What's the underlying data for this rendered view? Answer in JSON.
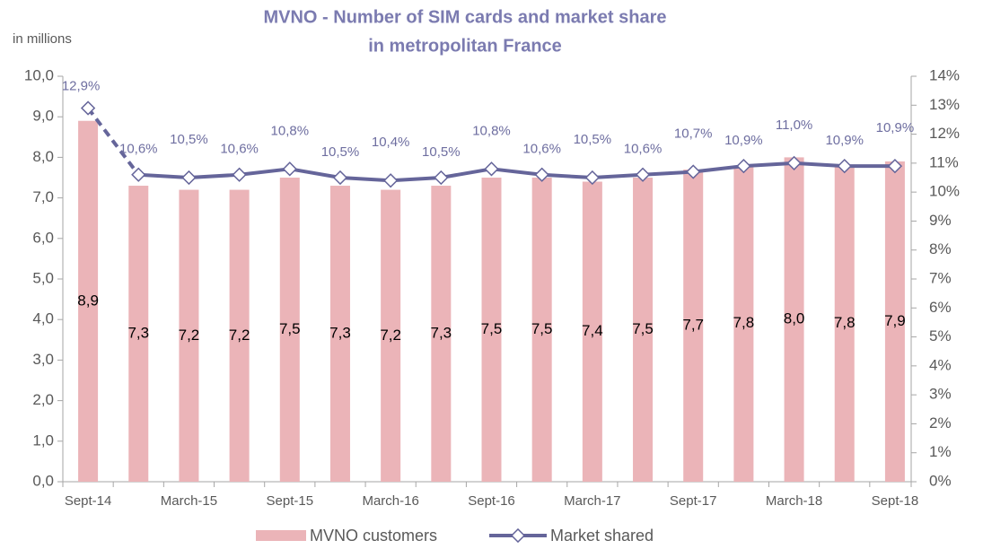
{
  "chart_data": {
    "type": "bar_line",
    "title": [
      "MVNO - Number of SIM cards and market share",
      "in metropolitan France"
    ],
    "ylabel": "in millions",
    "categories": [
      "Sept-14",
      null,
      "March-15",
      null,
      "Sept-15",
      null,
      "March-16",
      null,
      "Sept-16",
      null,
      "March-17",
      null,
      "Sept-17",
      null,
      "March-18",
      null,
      "Sept-18"
    ],
    "series": [
      {
        "name": "MVNO customers",
        "color": "#ebb4b8",
        "kind": "bar",
        "values": [
          8.9,
          7.3,
          7.2,
          7.2,
          7.5,
          7.3,
          7.2,
          7.3,
          7.5,
          7.5,
          7.4,
          7.5,
          7.7,
          7.8,
          8.0,
          7.8,
          7.9
        ],
        "value_labels": [
          "8,9",
          "7,3",
          "7,2",
          "7,2",
          "7,5",
          "7,3",
          "7,2",
          "7,3",
          "7,5",
          "7,5",
          "7,4",
          "7,5",
          "7,7",
          "7,8",
          "8,0",
          "7,8",
          "7,9"
        ]
      },
      {
        "name": "Market shared",
        "color": "#65659a",
        "kind": "line",
        "axis": "y2",
        "values": [
          12.9,
          10.6,
          10.5,
          10.6,
          10.8,
          10.5,
          10.4,
          10.5,
          10.8,
          10.6,
          10.5,
          10.6,
          10.7,
          10.9,
          11.0,
          10.9,
          10.9
        ],
        "value_labels": [
          "12,9%",
          "10,6%",
          "10,5%",
          "10,6%",
          "10,8%",
          "10,5%",
          "10,4%",
          "10,5%",
          "10,8%",
          "10,6%",
          "10,5%",
          "10,6%",
          "10,7%",
          "10,9%",
          "11,0%",
          "10,9%",
          "10,9%"
        ]
      }
    ],
    "ylim": [
      0,
      10
    ],
    "yticks": [
      {
        "value": 0,
        "label": "0,0"
      },
      {
        "value": 1,
        "label": "1,0"
      },
      {
        "value": 2,
        "label": "2,0"
      },
      {
        "value": 3,
        "label": "3,0"
      },
      {
        "value": 4,
        "label": "4,0"
      },
      {
        "value": 5,
        "label": "5,0"
      },
      {
        "value": 6,
        "label": "6,0"
      },
      {
        "value": 7,
        "label": "7,0"
      },
      {
        "value": 8,
        "label": "8,0"
      },
      {
        "value": 9,
        "label": "9,0"
      },
      {
        "value": 10,
        "label": "10,0"
      }
    ],
    "y2lim": [
      0,
      14
    ],
    "y2ticks": [
      {
        "value": 0,
        "label": "0%"
      },
      {
        "value": 1,
        "label": "1%"
      },
      {
        "value": 2,
        "label": "2%"
      },
      {
        "value": 3,
        "label": "3%"
      },
      {
        "value": 4,
        "label": "4%"
      },
      {
        "value": 5,
        "label": "5%"
      },
      {
        "value": 6,
        "label": "6%"
      },
      {
        "value": 7,
        "label": "7%"
      },
      {
        "value": 8,
        "label": "8%"
      },
      {
        "value": 9,
        "label": "9%"
      },
      {
        "value": 10,
        "label": "10%"
      },
      {
        "value": 11,
        "label": "11%"
      },
      {
        "value": 12,
        "label": "12%"
      },
      {
        "value": 13,
        "label": "13%"
      },
      {
        "value": 14,
        "label": "14%"
      }
    ],
    "legend": "bottom"
  }
}
